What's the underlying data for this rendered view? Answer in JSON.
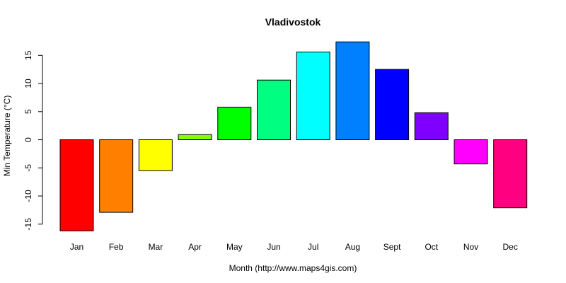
{
  "chart_data": {
    "type": "bar",
    "title": "Vladivostok",
    "xlabel": "Month (http://www.maps4gis.com)",
    "ylabel": "Min Temperature (°C)",
    "categories": [
      "Jan",
      "Feb",
      "Mar",
      "Apr",
      "May",
      "Jun",
      "Jul",
      "Aug",
      "Sept",
      "Oct",
      "Nov",
      "Dec"
    ],
    "values": [
      -16.2,
      -12.9,
      -5.5,
      0.9,
      5.8,
      10.6,
      15.6,
      17.4,
      12.5,
      4.8,
      -4.3,
      -12.1
    ],
    "colors": [
      "#ff0000",
      "#ff8000",
      "#ffff00",
      "#80ff00",
      "#00ff00",
      "#00ff80",
      "#00ffff",
      "#0080ff",
      "#0000ff",
      "#8000ff",
      "#ff00ff",
      "#ff0080"
    ],
    "yticks": [
      -15,
      -10,
      -5,
      0,
      5,
      10,
      15
    ],
    "ytick_labels": [
      "-15",
      "-10",
      "-5",
      "0",
      "5",
      "10",
      "15"
    ],
    "ylim": [
      -16.2,
      17.4
    ],
    "grid": false,
    "legend": "none"
  }
}
